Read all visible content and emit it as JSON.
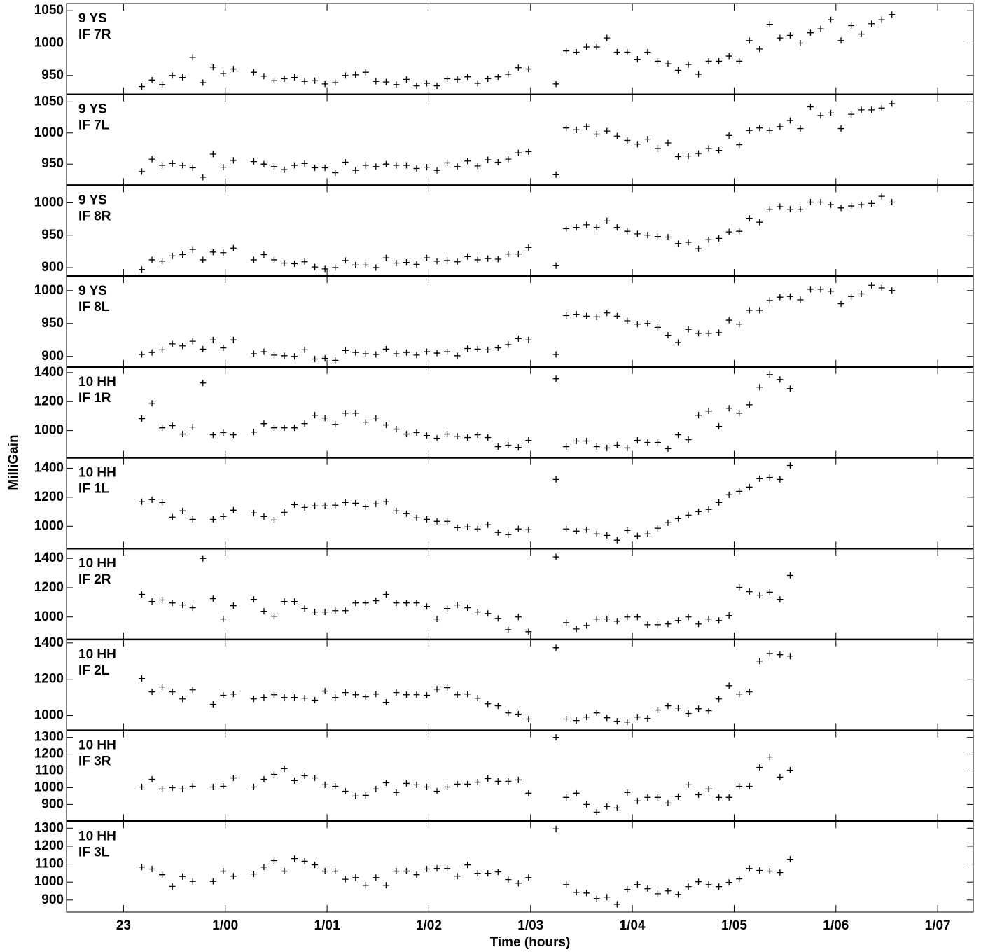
{
  "chart_data": {
    "type": "scatter",
    "xlabel": "Time (hours)",
    "ylabel": "MilliGain",
    "xlim": [
      22.44,
      31.35
    ],
    "xticks": [
      {
        "value": 23,
        "label": "23"
      },
      {
        "value": 24,
        "label": "1/00"
      },
      {
        "value": 25,
        "label": "1/01"
      },
      {
        "value": 26,
        "label": "1/02"
      },
      {
        "value": 27,
        "label": "1/03"
      },
      {
        "value": 28,
        "label": "1/04"
      },
      {
        "value": 29,
        "label": "1/05"
      },
      {
        "value": 30,
        "label": "1/06"
      },
      {
        "value": 31,
        "label": "1/07"
      }
    ],
    "color": "#000000",
    "x": [
      23.18,
      23.28,
      23.38,
      23.48,
      23.58,
      23.68,
      23.78,
      23.88,
      23.98,
      24.08,
      24.18,
      24.28,
      24.38,
      24.48,
      24.58,
      24.68,
      24.78,
      24.88,
      24.98,
      25.08,
      25.18,
      25.28,
      25.38,
      25.48,
      25.58,
      25.68,
      25.78,
      25.88,
      25.98,
      26.08,
      26.18,
      26.28,
      26.38,
      26.48,
      26.58,
      26.68,
      26.78,
      26.88,
      26.98,
      27.25,
      27.35,
      27.45,
      27.55,
      27.65,
      27.75,
      27.85,
      27.95,
      28.05,
      28.15,
      28.25,
      28.35,
      28.45,
      28.55,
      28.65,
      28.75,
      28.85,
      28.95,
      29.05,
      29.15,
      29.25,
      29.35,
      29.45,
      29.55,
      29.65,
      29.75,
      29.85,
      29.95,
      30.05,
      30.15,
      30.25,
      30.35,
      30.45,
      30.55
    ],
    "series": [
      {
        "antenna": "9 YS",
        "if": "IF 7R",
        "ylim": [
          921,
          1061
        ],
        "yticks": [
          950,
          1000,
          1050
        ],
        "values": [
          933,
          943,
          936,
          950,
          947,
          978,
          939,
          963,
          953,
          960,
          null,
          955,
          949,
          942,
          945,
          947,
          941,
          942,
          937,
          939,
          950,
          951,
          955,
          941,
          940,
          936,
          944,
          934,
          938,
          934,
          945,
          944,
          948,
          938,
          945,
          948,
          952,
          962,
          960,
          937,
          988,
          986,
          994,
          994,
          1008,
          986,
          986,
          975,
          986,
          972,
          968,
          958,
          967,
          952,
          972,
          972,
          980,
          972,
          1004,
          991,
          1029,
          1008,
          1012,
          1000,
          1016,
          1022,
          1036,
          1004,
          1027,
          1014,
          1030,
          1036,
          1044
        ]
      },
      {
        "antenna": "9 YS",
        "if": "IF 7L",
        "ylim": [
          916,
          1062
        ],
        "yticks": [
          950,
          1000,
          1050
        ],
        "values": [
          938,
          958,
          948,
          951,
          948,
          944,
          929,
          966,
          945,
          956,
          null,
          954,
          950,
          946,
          941,
          948,
          951,
          944,
          944,
          936,
          953,
          940,
          948,
          946,
          950,
          948,
          948,
          943,
          945,
          940,
          952,
          946,
          955,
          947,
          957,
          953,
          958,
          968,
          970,
          933,
          1008,
          1005,
          1010,
          998,
          1003,
          995,
          988,
          982,
          990,
          975,
          984,
          962,
          963,
          967,
          975,
          972,
          996,
          981,
          1004,
          1008,
          1004,
          1010,
          1020,
          1007,
          1042,
          1028,
          1032,
          1007,
          1030,
          1037,
          1037,
          1040,
          1047
        ]
      },
      {
        "antenna": "9 YS",
        "if": "IF 8R",
        "ylim": [
          887,
          1027
        ],
        "yticks": [
          900,
          950,
          1000
        ],
        "values": [
          897,
          912,
          910,
          918,
          920,
          928,
          912,
          924,
          923,
          930,
          null,
          912,
          920,
          912,
          907,
          906,
          909,
          901,
          898,
          900,
          911,
          904,
          904,
          900,
          915,
          907,
          908,
          905,
          915,
          910,
          911,
          909,
          917,
          912,
          914,
          913,
          921,
          921,
          931,
          903,
          960,
          962,
          966,
          962,
          972,
          962,
          956,
          952,
          950,
          948,
          947,
          937,
          939,
          929,
          943,
          945,
          955,
          956,
          976,
          970,
          990,
          994,
          990,
          990,
          1001,
          1001,
          997,
          992,
          995,
          997,
          999,
          1010,
          1001
        ]
      },
      {
        "antenna": "9 YS",
        "if": "IF 8L",
        "ylim": [
          884,
          1022
        ],
        "yticks": [
          900,
          950,
          1000
        ],
        "values": [
          903,
          906,
          910,
          919,
          916,
          923,
          911,
          925,
          913,
          925,
          null,
          904,
          907,
          902,
          901,
          900,
          910,
          896,
          897,
          894,
          909,
          906,
          904,
          903,
          911,
          904,
          906,
          902,
          907,
          905,
          907,
          901,
          912,
          911,
          910,
          913,
          918,
          927,
          925,
          903,
          962,
          964,
          961,
          960,
          966,
          961,
          954,
          949,
          950,
          944,
          932,
          921,
          941,
          935,
          935,
          936,
          955,
          949,
          970,
          970,
          985,
          990,
          991,
          986,
          1002,
          1002,
          999,
          980,
          991,
          995,
          1008,
          1004,
          1000
        ]
      },
      {
        "antenna": "10 HH",
        "if": "IF 1R",
        "ylim": [
          812,
          1439
        ],
        "yticks": [
          1000,
          1200,
          1400
        ],
        "values": [
          1082,
          1188,
          1019,
          1034,
          976,
          1024,
          1328,
          971,
          986,
          971,
          null,
          990,
          1048,
          1019,
          1019,
          1019,
          1048,
          1106,
          1087,
          1043,
          1120,
          1120,
          1058,
          1087,
          1039,
          1010,
          976,
          986,
          966,
          947,
          976,
          961,
          952,
          971,
          952,
          889,
          899,
          884,
          933,
          1357,
          889,
          928,
          928,
          889,
          880,
          899,
          880,
          933,
          918,
          918,
          875,
          971,
          937,
          1106,
          1135,
          1029,
          1154,
          1120,
          1178,
          1299,
          1386,
          1352,
          1289,
          null,
          null,
          null,
          null,
          null,
          null,
          null,
          null,
          null,
          null
        ]
      },
      {
        "antenna": "10 HH",
        "if": "IF 1L",
        "ylim": [
          846,
          1472
        ],
        "yticks": [
          1000,
          1200,
          1400
        ],
        "values": [
          1169,
          1183,
          1164,
          1063,
          1106,
          1048,
          null,
          1048,
          1067,
          1111,
          null,
          1092,
          1067,
          1043,
          1096,
          1149,
          1130,
          1140,
          1140,
          1145,
          1164,
          1159,
          1135,
          1154,
          1169,
          1106,
          1087,
          1058,
          1048,
          1034,
          1034,
          990,
          995,
          981,
          1010,
          957,
          942,
          981,
          976,
          1323,
          981,
          966,
          976,
          947,
          937,
          904,
          971,
          933,
          947,
          986,
          1024,
          1053,
          1077,
          1101,
          1116,
          1164,
          1217,
          1241,
          1270,
          1328,
          1337,
          1323,
          1419,
          null,
          null,
          null,
          null,
          null,
          null,
          null,
          null,
          null,
          null
        ]
      },
      {
        "antenna": "10 HH",
        "if": "IF 2R",
        "ylim": [
          846,
          1467
        ],
        "yticks": [
          1000,
          1200,
          1400
        ],
        "values": [
          1154,
          1106,
          1116,
          1096,
          1082,
          1063,
          1400,
          1125,
          986,
          1077,
          null,
          1120,
          1039,
          1005,
          1106,
          1106,
          1058,
          1034,
          1034,
          1043,
          1043,
          1096,
          1096,
          1111,
          1154,
          1096,
          1096,
          1096,
          1072,
          986,
          1058,
          1082,
          1063,
          1034,
          1024,
          990,
          913,
          1000,
          899,
          1410,
          961,
          918,
          942,
          986,
          986,
          971,
          1000,
          1000,
          947,
          947,
          952,
          976,
          1000,
          952,
          986,
          976,
          1010,
          1202,
          1173,
          1149,
          1169,
          1120,
          1284,
          null,
          null,
          null,
          null,
          null,
          null,
          null,
          null,
          null,
          null
        ]
      },
      {
        "antenna": "10 HH",
        "if": "IF 2L",
        "ylim": [
          919,
          1419
        ],
        "yticks": [
          1000,
          1200,
          1400
        ],
        "values": [
          1204,
          1131,
          1158,
          1131,
          1092,
          1142,
          null,
          1062,
          1112,
          1119,
          null,
          1092,
          1100,
          1115,
          1100,
          1100,
          1096,
          1085,
          1135,
          1100,
          1127,
          1115,
          1104,
          1119,
          1073,
          1127,
          1115,
          1115,
          1112,
          1146,
          1154,
          1115,
          1119,
          1096,
          1065,
          1054,
          1015,
          1008,
          981,
          1373,
          981,
          973,
          992,
          1015,
          988,
          969,
          965,
          992,
          985,
          1031,
          1054,
          1042,
          1012,
          1038,
          1027,
          1092,
          1165,
          1119,
          1131,
          1300,
          1342,
          1335,
          1327,
          null,
          null,
          null,
          null,
          null,
          null,
          null,
          null,
          null,
          null
        ]
      },
      {
        "antenna": "10 HH",
        "if": "IF 3R",
        "ylim": [
          800,
          1342
        ],
        "yticks": [
          900,
          1000,
          1100,
          1200,
          1300
        ],
        "values": [
          1004,
          1050,
          992,
          1000,
          992,
          1008,
          null,
          1004,
          1008,
          1058,
          null,
          1004,
          1050,
          1079,
          1113,
          1042,
          1071,
          1058,
          1017,
          1008,
          979,
          950,
          954,
          992,
          1029,
          971,
          1025,
          1017,
          1004,
          979,
          1004,
          1021,
          1021,
          1033,
          1054,
          1038,
          1038,
          1046,
          967,
          1300,
          942,
          967,
          900,
          854,
          888,
          879,
          971,
          921,
          942,
          942,
          908,
          946,
          1017,
          958,
          992,
          942,
          942,
          1008,
          1008,
          1121,
          1183,
          1063,
          1104,
          null,
          null,
          null,
          null,
          null,
          null,
          null,
          null,
          null,
          null
        ]
      },
      {
        "antenna": "10 HH",
        "if": "IF 3L",
        "ylim": [
          833,
          1339
        ],
        "yticks": [
          900,
          1000,
          1100,
          1200,
          1300
        ],
        "values": [
          1084,
          1073,
          1041,
          976,
          1031,
          1004,
          null,
          1004,
          1061,
          1033,
          null,
          1045,
          1084,
          1120,
          1061,
          1131,
          1116,
          1096,
          1061,
          1061,
          1016,
          1025,
          982,
          1025,
          982,
          1061,
          1061,
          1041,
          1073,
          1076,
          1076,
          1033,
          1096,
          1049,
          1049,
          1057,
          1014,
          994,
          1025,
          1296,
          986,
          943,
          939,
          908,
          916,
          876,
          959,
          986,
          963,
          935,
          951,
          931,
          975,
          1002,
          986,
          975,
          998,
          1018,
          1076,
          1065,
          1061,
          1053,
          1127,
          null,
          null,
          null,
          null,
          null,
          null,
          null,
          null,
          null,
          null
        ]
      }
    ]
  }
}
